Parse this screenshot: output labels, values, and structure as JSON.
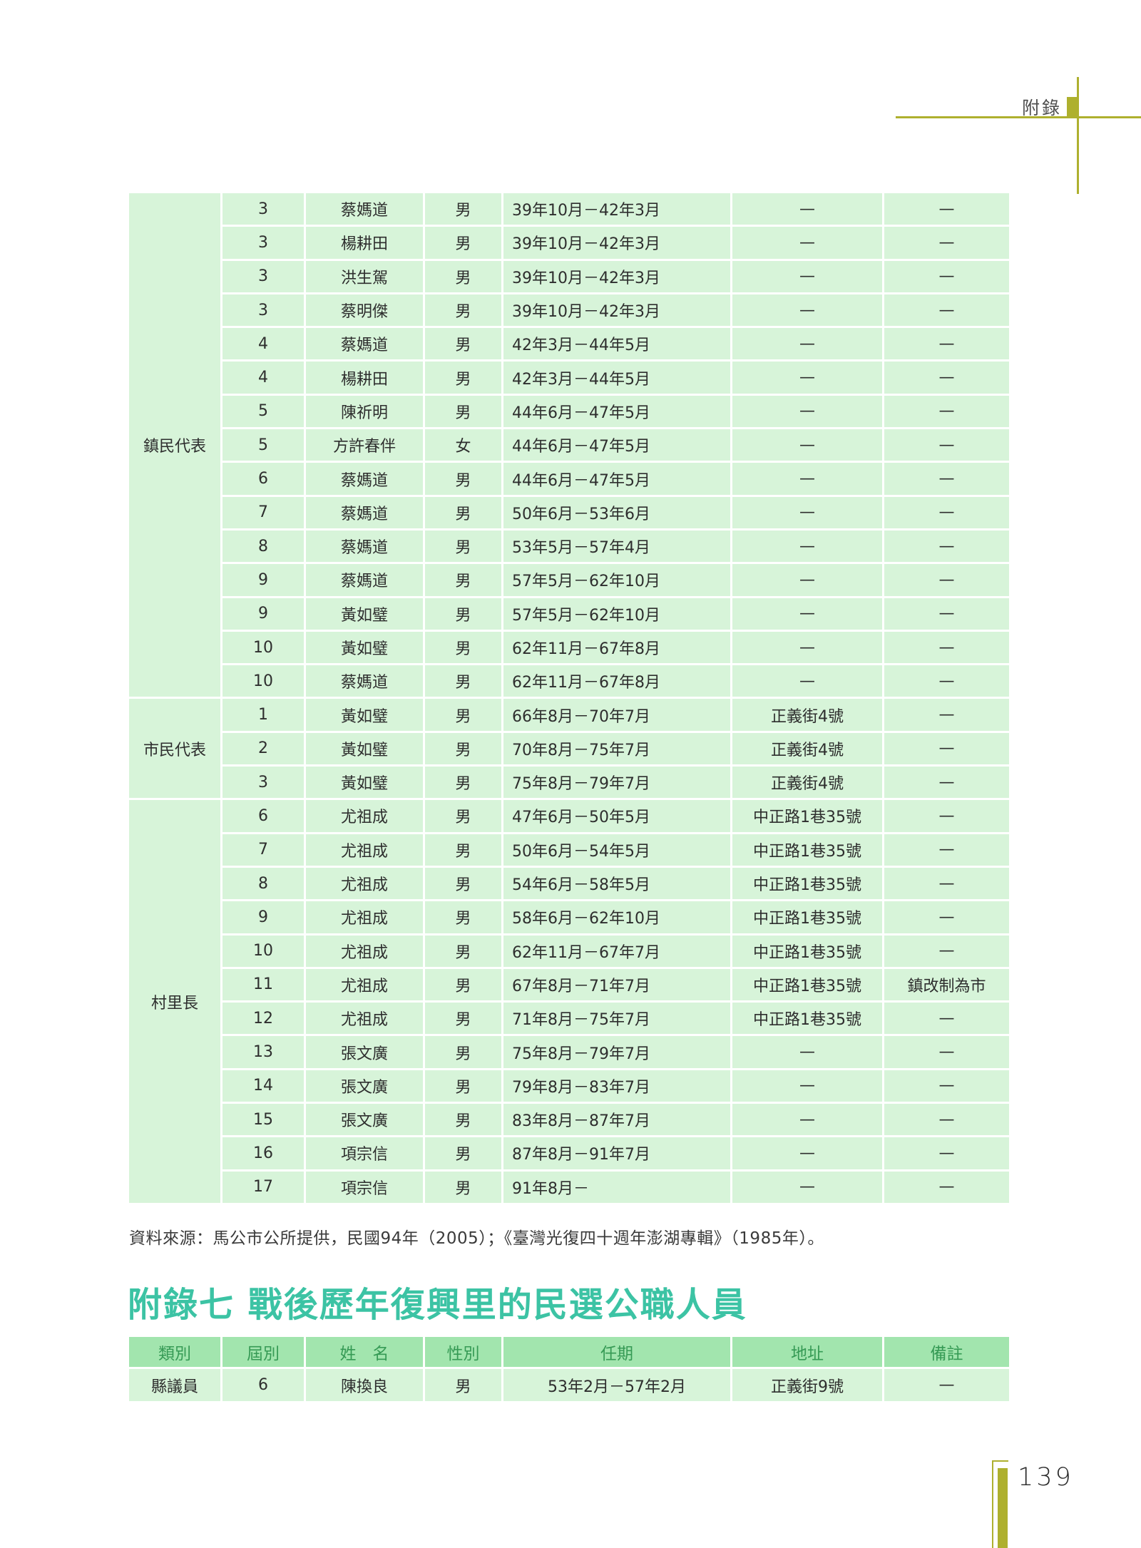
{
  "header": {
    "label": "附錄"
  },
  "colors": {
    "accent_olive": "#aeb02e",
    "title_teal": "#3cc3a4",
    "cell_green": "#d7f4d9",
    "header_cell_green": "#a2e5ae",
    "header_text_green": "#369a55"
  },
  "table1": {
    "columns": [
      "category",
      "term",
      "name",
      "gender",
      "period",
      "address",
      "note"
    ],
    "sections": [
      {
        "category": "鎮民代表",
        "rows": [
          [
            "3",
            "蔡媽道",
            "男",
            "39年10月－42年3月",
            "—",
            "—"
          ],
          [
            "3",
            "楊耕田",
            "男",
            "39年10月－42年3月",
            "—",
            "—"
          ],
          [
            "3",
            "洪生駕",
            "男",
            "39年10月－42年3月",
            "—",
            "—"
          ],
          [
            "3",
            "蔡明傑",
            "男",
            "39年10月－42年3月",
            "—",
            "—"
          ],
          [
            "4",
            "蔡媽道",
            "男",
            "42年3月－44年5月",
            "—",
            "—"
          ],
          [
            "4",
            "楊耕田",
            "男",
            "42年3月－44年5月",
            "—",
            "—"
          ],
          [
            "5",
            "陳祈明",
            "男",
            "44年6月－47年5月",
            "—",
            "—"
          ],
          [
            "5",
            "方許春伴",
            "女",
            "44年6月－47年5月",
            "—",
            "—"
          ],
          [
            "6",
            "蔡媽道",
            "男",
            "44年6月－47年5月",
            "—",
            "—"
          ],
          [
            "7",
            "蔡媽道",
            "男",
            "50年6月－53年6月",
            "—",
            "—"
          ],
          [
            "8",
            "蔡媽道",
            "男",
            "53年5月－57年4月",
            "—",
            "—"
          ],
          [
            "9",
            "蔡媽道",
            "男",
            "57年5月－62年10月",
            "—",
            "—"
          ],
          [
            "9",
            "黃如璧",
            "男",
            "57年5月－62年10月",
            "—",
            "—"
          ],
          [
            "10",
            "黃如璧",
            "男",
            "62年11月－67年8月",
            "—",
            "—"
          ],
          [
            "10",
            "蔡媽道",
            "男",
            "62年11月－67年8月",
            "—",
            "—"
          ]
        ]
      },
      {
        "category": "市民代表",
        "rows": [
          [
            "1",
            "黃如璧",
            "男",
            "66年8月－70年7月",
            "正義街4號",
            "—"
          ],
          [
            "2",
            "黃如璧",
            "男",
            "70年8月－75年7月",
            "正義街4號",
            "—"
          ],
          [
            "3",
            "黃如璧",
            "男",
            "75年8月－79年7月",
            "正義街4號",
            "—"
          ]
        ]
      },
      {
        "category": "村里長",
        "rows": [
          [
            "6",
            "尤祖成",
            "男",
            "47年6月－50年5月",
            "中正路1巷35號",
            "—"
          ],
          [
            "7",
            "尤祖成",
            "男",
            "50年6月－54年5月",
            "中正路1巷35號",
            "—"
          ],
          [
            "8",
            "尤祖成",
            "男",
            "54年6月－58年5月",
            "中正路1巷35號",
            "—"
          ],
          [
            "9",
            "尤祖成",
            "男",
            "58年6月－62年10月",
            "中正路1巷35號",
            "—"
          ],
          [
            "10",
            "尤祖成",
            "男",
            "62年11月－67年7月",
            "中正路1巷35號",
            "—"
          ],
          [
            "11",
            "尤祖成",
            "男",
            "67年8月－71年7月",
            "中正路1巷35號",
            "鎮改制為市"
          ],
          [
            "12",
            "尤祖成",
            "男",
            "71年8月－75年7月",
            "中正路1巷35號",
            "—"
          ],
          [
            "13",
            "張文廣",
            "男",
            "75年8月－79年7月",
            "—",
            "—"
          ],
          [
            "14",
            "張文廣",
            "男",
            "79年8月－83年7月",
            "—",
            "—"
          ],
          [
            "15",
            "張文廣",
            "男",
            "83年8月－87年7月",
            "—",
            "—"
          ],
          [
            "16",
            "項宗信",
            "男",
            "87年8月－91年7月",
            "—",
            "—"
          ],
          [
            "17",
            "項宗信",
            "男",
            "91年8月－",
            "—",
            "—"
          ]
        ]
      }
    ]
  },
  "source_note": "資料來源：馬公市公所提供，民國94年（2005）；《臺灣光復四十週年澎湖專輯》（1985年）。",
  "section_title": "附錄七 戰後歷年復興里的民選公職人員",
  "table2": {
    "headers": [
      "類別",
      "屆別",
      "姓　名",
      "性別",
      "任期",
      "地址",
      "備註"
    ],
    "rows": [
      [
        "縣議員",
        "6",
        "陳換良",
        "男",
        "53年2月－57年2月",
        "正義街9號",
        "—"
      ]
    ]
  },
  "footer": {
    "page_number": "139"
  }
}
